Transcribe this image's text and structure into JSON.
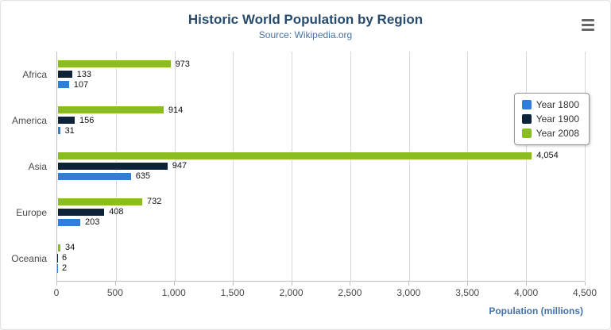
{
  "chart_data": {
    "type": "bar",
    "orientation": "horizontal",
    "title": "Historic World Population by Region",
    "subtitle": "Source: Wikipedia.org",
    "categories": [
      "Africa",
      "America",
      "Asia",
      "Europe",
      "Oceania"
    ],
    "series": [
      {
        "name": "Year 1800",
        "color": "#2f7ed8",
        "values": [
          107,
          31,
          635,
          203,
          2
        ]
      },
      {
        "name": "Year 1900",
        "color": "#0d233a",
        "values": [
          133,
          156,
          947,
          408,
          6
        ]
      },
      {
        "name": "Year 2008",
        "color": "#8bbc21",
        "values": [
          973,
          914,
          4054,
          732,
          34
        ]
      }
    ],
    "xlabel": "Population (millions)",
    "ylabel": "",
    "xlim": [
      0,
      4500
    ],
    "xticks": [
      "0",
      "500",
      "1,000",
      "1,500",
      "2,000",
      "2,500",
      "3,000",
      "3,500",
      "4,000",
      "4,500"
    ],
    "grid": true,
    "legend_position": "right",
    "data_labels": true
  },
  "export_menu": {
    "icon": "hamburger-menu-icon"
  },
  "colors": {
    "title": "#274b6d",
    "subtitle": "#4572a7",
    "axis_line": "#c0c0c0",
    "gridline": "#d8d8d8",
    "axis_label": "#4a4a4a",
    "xaxis_title": "#4572a7"
  }
}
